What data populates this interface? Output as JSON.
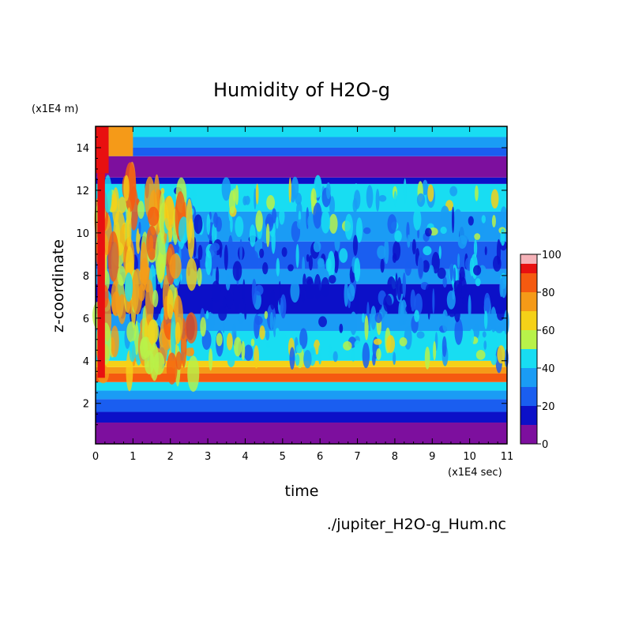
{
  "chart_data": {
    "type": "heatmap",
    "title": "Humidity of H2O-g",
    "xlabel": "time",
    "ylabel": "z-coordinate",
    "x_unit": "(x1E4 sec)",
    "y_unit": "(x1E4 m)",
    "xlim": [
      0,
      11
    ],
    "ylim": [
      0.1,
      15
    ],
    "x_ticks": [
      0,
      1,
      2,
      3,
      4,
      5,
      6,
      7,
      8,
      9,
      10,
      11
    ],
    "y_ticks": [
      2,
      4,
      6,
      8,
      10,
      12,
      14
    ],
    "colorbar": {
      "range": [
        0,
        100
      ],
      "ticks": [
        0,
        20,
        40,
        60,
        80,
        100
      ],
      "colors": [
        "#7d0f9e",
        "#0c10c8",
        "#1a5ef0",
        "#1a9cf5",
        "#18ddf2",
        "#b8f24a",
        "#f5d118",
        "#f59a18",
        "#f55a10",
        "#e81010",
        "#f5b2b8"
      ]
    },
    "source_file": "./jupiter_H2O-g_Hum.nc",
    "grid": false,
    "layers": [
      {
        "z": [
          0.1,
          1.1
        ],
        "value": 5
      },
      {
        "z": [
          1.1,
          1.6
        ],
        "value": 15
      },
      {
        "z": [
          1.6,
          2.2
        ],
        "value": 25
      },
      {
        "z": [
          2.2,
          2.6
        ],
        "value": 35
      },
      {
        "z": [
          2.6,
          3.0
        ],
        "value": 45
      },
      {
        "z": [
          3.0,
          3.4
        ],
        "value": 85
      },
      {
        "z": [
          3.4,
          3.7
        ],
        "value": 75
      },
      {
        "z": [
          3.7,
          4.0
        ],
        "value": 60
      },
      {
        "z": [
          4.0,
          5.4
        ],
        "value": 45
      },
      {
        "z": [
          5.4,
          6.2
        ],
        "value": 35
      },
      {
        "z": [
          6.2,
          7.6
        ],
        "value": 18
      },
      {
        "z": [
          7.6,
          8.3
        ],
        "value": 32
      },
      {
        "z": [
          8.3,
          9.6
        ],
        "value": 28
      },
      {
        "z": [
          9.6,
          11.0
        ],
        "value": 35
      },
      {
        "z": [
          11.0,
          12.3
        ],
        "value": 48
      },
      {
        "z": [
          12.3,
          12.6
        ],
        "value": 15
      },
      {
        "z": [
          12.6,
          13.6
        ],
        "value": 5
      },
      {
        "z": [
          13.6,
          14.0
        ],
        "value": 25
      },
      {
        "z": [
          14.0,
          14.5
        ],
        "value": 35
      },
      {
        "z": [
          14.5,
          15.0
        ],
        "value": 45
      }
    ]
  }
}
